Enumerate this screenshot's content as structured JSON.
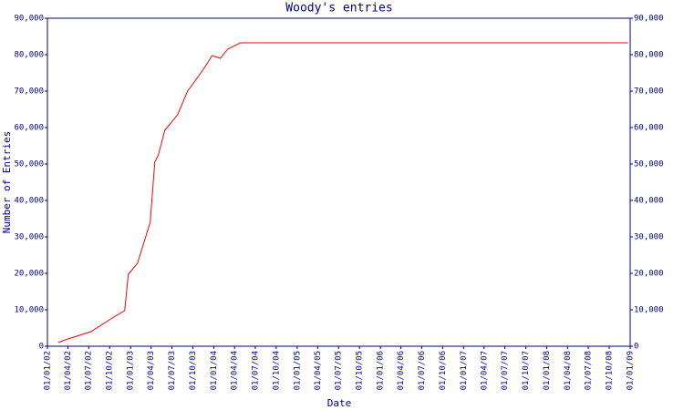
{
  "chart_data": {
    "type": "line",
    "title": "Woody's entries",
    "x_label": "Date",
    "y_label": "Number of Entries",
    "x": [
      "17/02/02",
      "01/04/02",
      "11/07/02",
      "19/10/02",
      "06/12/02",
      "22/12/02",
      "31/01/03",
      "28/03/03",
      "17/04/03",
      "03/05/03",
      "31/05/03",
      "26/07/03",
      "08/09/03",
      "22/10/03",
      "27/11/03",
      "25/12/03",
      "30/01/04",
      "02/03/04",
      "27/04/04",
      "23/12/08"
    ],
    "series": [
      {
        "name": "Woody",
        "color": "#ff0000",
        "values": [
          1000,
          2000,
          4000,
          8000,
          9750,
          19750,
          22750,
          34000,
          50500,
          52500,
          59250,
          63500,
          70000,
          73750,
          77000,
          79750,
          79000,
          81500,
          83250,
          83250
        ]
      }
    ],
    "xlim": [
      "01/01/02",
      "01/01/09"
    ],
    "xticks": [
      "01/01/02",
      "01/04/02",
      "01/07/02",
      "01/10/02",
      "01/01/03",
      "01/04/03",
      "01/07/03",
      "01/10/03",
      "01/01/04",
      "01/04/04",
      "01/07/04",
      "01/10/04",
      "01/01/05",
      "01/04/05",
      "01/07/05",
      "01/10/05",
      "01/01/06",
      "01/04/06",
      "01/07/06",
      "01/10/06",
      "01/01/07",
      "01/04/07",
      "01/07/07",
      "01/10/07",
      "01/01/08",
      "01/04/08",
      "01/07/08",
      "01/10/08",
      "01/01/09"
    ],
    "ylim": [
      0,
      90000
    ],
    "yticks": [
      0,
      {
        "value": 10000,
        "label": "10,000"
      },
      {
        "value": 20000,
        "label": "20,000"
      },
      {
        "value": 30000,
        "label": "30,000"
      },
      {
        "value": 40000,
        "label": "40,000"
      },
      {
        "value": 50000,
        "label": "50,000"
      },
      {
        "value": 60000,
        "label": "60,000"
      },
      {
        "value": 70000,
        "label": "70,000"
      },
      {
        "value": 80000,
        "label": "80,000"
      },
      {
        "value": 90000,
        "label": "90,000"
      }
    ],
    "y2lim": [
      0,
      90000
    ],
    "y2ticks": [
      0,
      {
        "value": 10000,
        "label": "10,000"
      },
      {
        "value": 20000,
        "label": "20,000"
      },
      {
        "value": 30000,
        "label": "30,000"
      },
      {
        "value": 40000,
        "label": "40,000"
      },
      {
        "value": 50000,
        "label": "50,000"
      },
      {
        "value": 60000,
        "label": "60,000"
      },
      {
        "value": 70000,
        "label": "70,000"
      },
      {
        "value": 80000,
        "label": "80,000"
      },
      {
        "value": 90000,
        "label": "90,000"
      }
    ]
  }
}
